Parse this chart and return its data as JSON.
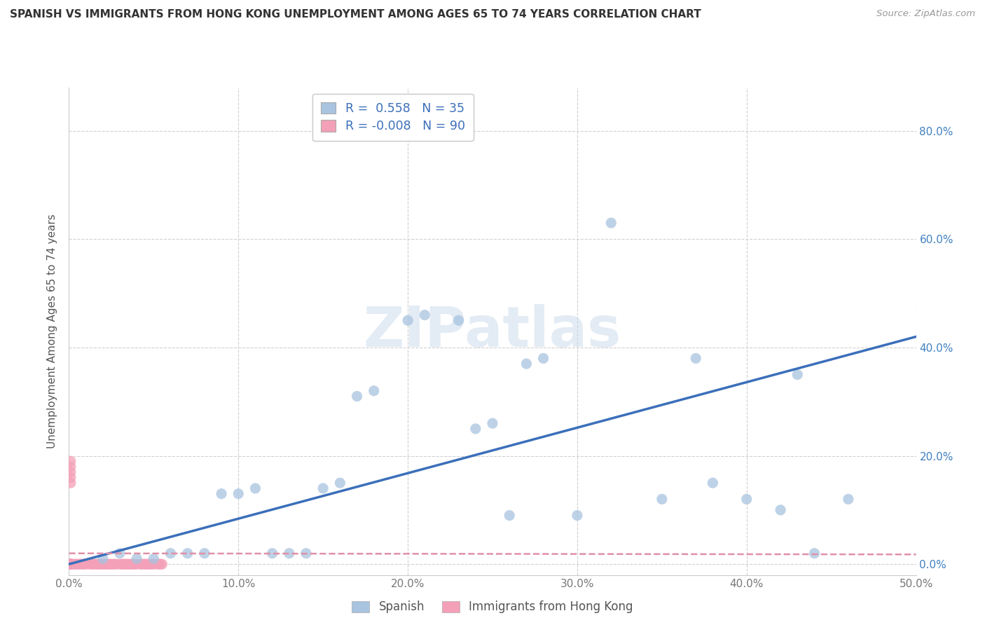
{
  "title": "SPANISH VS IMMIGRANTS FROM HONG KONG UNEMPLOYMENT AMONG AGES 65 TO 74 YEARS CORRELATION CHART",
  "source": "Source: ZipAtlas.com",
  "ylabel": "Unemployment Among Ages 65 to 74 years",
  "xlim": [
    0.0,
    0.5
  ],
  "ylim": [
    -0.02,
    0.88
  ],
  "xticks": [
    0.0,
    0.1,
    0.2,
    0.3,
    0.4,
    0.5
  ],
  "yticks": [
    0.0,
    0.2,
    0.4,
    0.6,
    0.8
  ],
  "xtick_labels": [
    "0.0%",
    "10.0%",
    "20.0%",
    "30.0%",
    "40.0%",
    "50.0%"
  ],
  "ytick_labels": [
    "0.0%",
    "20.0%",
    "40.0%",
    "60.0%",
    "80.0%"
  ],
  "blue_R": 0.558,
  "blue_N": 35,
  "pink_R": -0.008,
  "pink_N": 90,
  "blue_color": "#a8c4e0",
  "pink_color": "#f4a0b8",
  "blue_line_color": "#3b6fba",
  "pink_line_color": "#e090a8",
  "watermark": "ZIPatlas",
  "blue_line_x0": 0.0,
  "blue_line_y0": 0.0,
  "blue_line_x1": 0.5,
  "blue_line_y1": 0.42,
  "pink_line_x0": 0.0,
  "pink_line_y0": 0.02,
  "pink_line_x1": 0.5,
  "pink_line_y1": 0.018,
  "blue_scatter_x": [
    0.02,
    0.03,
    0.04,
    0.05,
    0.06,
    0.07,
    0.08,
    0.09,
    0.1,
    0.11,
    0.12,
    0.13,
    0.14,
    0.15,
    0.16,
    0.17,
    0.18,
    0.2,
    0.21,
    0.23,
    0.24,
    0.25,
    0.26,
    0.27,
    0.28,
    0.3,
    0.32,
    0.35,
    0.37,
    0.38,
    0.4,
    0.42,
    0.43,
    0.44,
    0.46
  ],
  "blue_scatter_y": [
    0.01,
    0.02,
    0.01,
    0.01,
    0.02,
    0.02,
    0.02,
    0.13,
    0.13,
    0.14,
    0.02,
    0.02,
    0.02,
    0.14,
    0.15,
    0.31,
    0.32,
    0.45,
    0.46,
    0.45,
    0.25,
    0.26,
    0.09,
    0.37,
    0.38,
    0.09,
    0.63,
    0.12,
    0.38,
    0.15,
    0.12,
    0.1,
    0.35,
    0.02,
    0.12
  ],
  "pink_scatter_x": [
    0.001,
    0.001,
    0.001,
    0.001,
    0.001,
    0.001,
    0.001,
    0.001,
    0.001,
    0.001,
    0.001,
    0.001,
    0.001,
    0.001,
    0.001,
    0.001,
    0.001,
    0.001,
    0.001,
    0.001,
    0.001,
    0.001,
    0.001,
    0.001,
    0.001,
    0.001,
    0.001,
    0.001,
    0.001,
    0.001,
    0.001,
    0.001,
    0.001,
    0.001,
    0.001,
    0.001,
    0.001,
    0.001,
    0.001,
    0.001,
    0.002,
    0.003,
    0.004,
    0.005,
    0.006,
    0.007,
    0.008,
    0.009,
    0.01,
    0.012,
    0.013,
    0.014,
    0.015,
    0.016,
    0.017,
    0.018,
    0.019,
    0.02,
    0.021,
    0.022,
    0.023,
    0.024,
    0.025,
    0.026,
    0.027,
    0.028,
    0.03,
    0.031,
    0.032,
    0.033,
    0.034,
    0.035,
    0.036,
    0.037,
    0.038,
    0.039,
    0.04,
    0.042,
    0.043,
    0.044,
    0.045,
    0.046,
    0.047,
    0.048,
    0.049,
    0.05,
    0.052,
    0.053,
    0.054,
    0.055
  ],
  "pink_scatter_y": [
    0.0,
    0.0,
    0.0,
    0.0,
    0.0,
    0.0,
    0.0,
    0.0,
    0.0,
    0.0,
    0.0,
    0.0,
    0.0,
    0.0,
    0.0,
    0.0,
    0.0,
    0.0,
    0.0,
    0.0,
    0.15,
    0.16,
    0.17,
    0.18,
    0.19,
    0.0,
    0.0,
    0.0,
    0.0,
    0.0,
    0.0,
    0.0,
    0.0,
    0.0,
    0.0,
    0.0,
    0.0,
    0.0,
    0.0,
    0.0,
    0.0,
    0.0,
    0.0,
    0.0,
    0.0,
    0.0,
    0.0,
    0.0,
    0.0,
    0.0,
    0.0,
    0.0,
    0.0,
    0.0,
    0.0,
    0.0,
    0.0,
    0.0,
    0.0,
    0.0,
    0.0,
    0.0,
    0.0,
    0.0,
    0.0,
    0.0,
    0.0,
    0.0,
    0.0,
    0.0,
    0.0,
    0.0,
    0.0,
    0.0,
    0.0,
    0.0,
    0.0,
    0.0,
    0.0,
    0.0,
    0.0,
    0.0,
    0.0,
    0.0,
    0.0,
    0.0,
    0.0,
    0.0,
    0.0,
    0.0
  ]
}
